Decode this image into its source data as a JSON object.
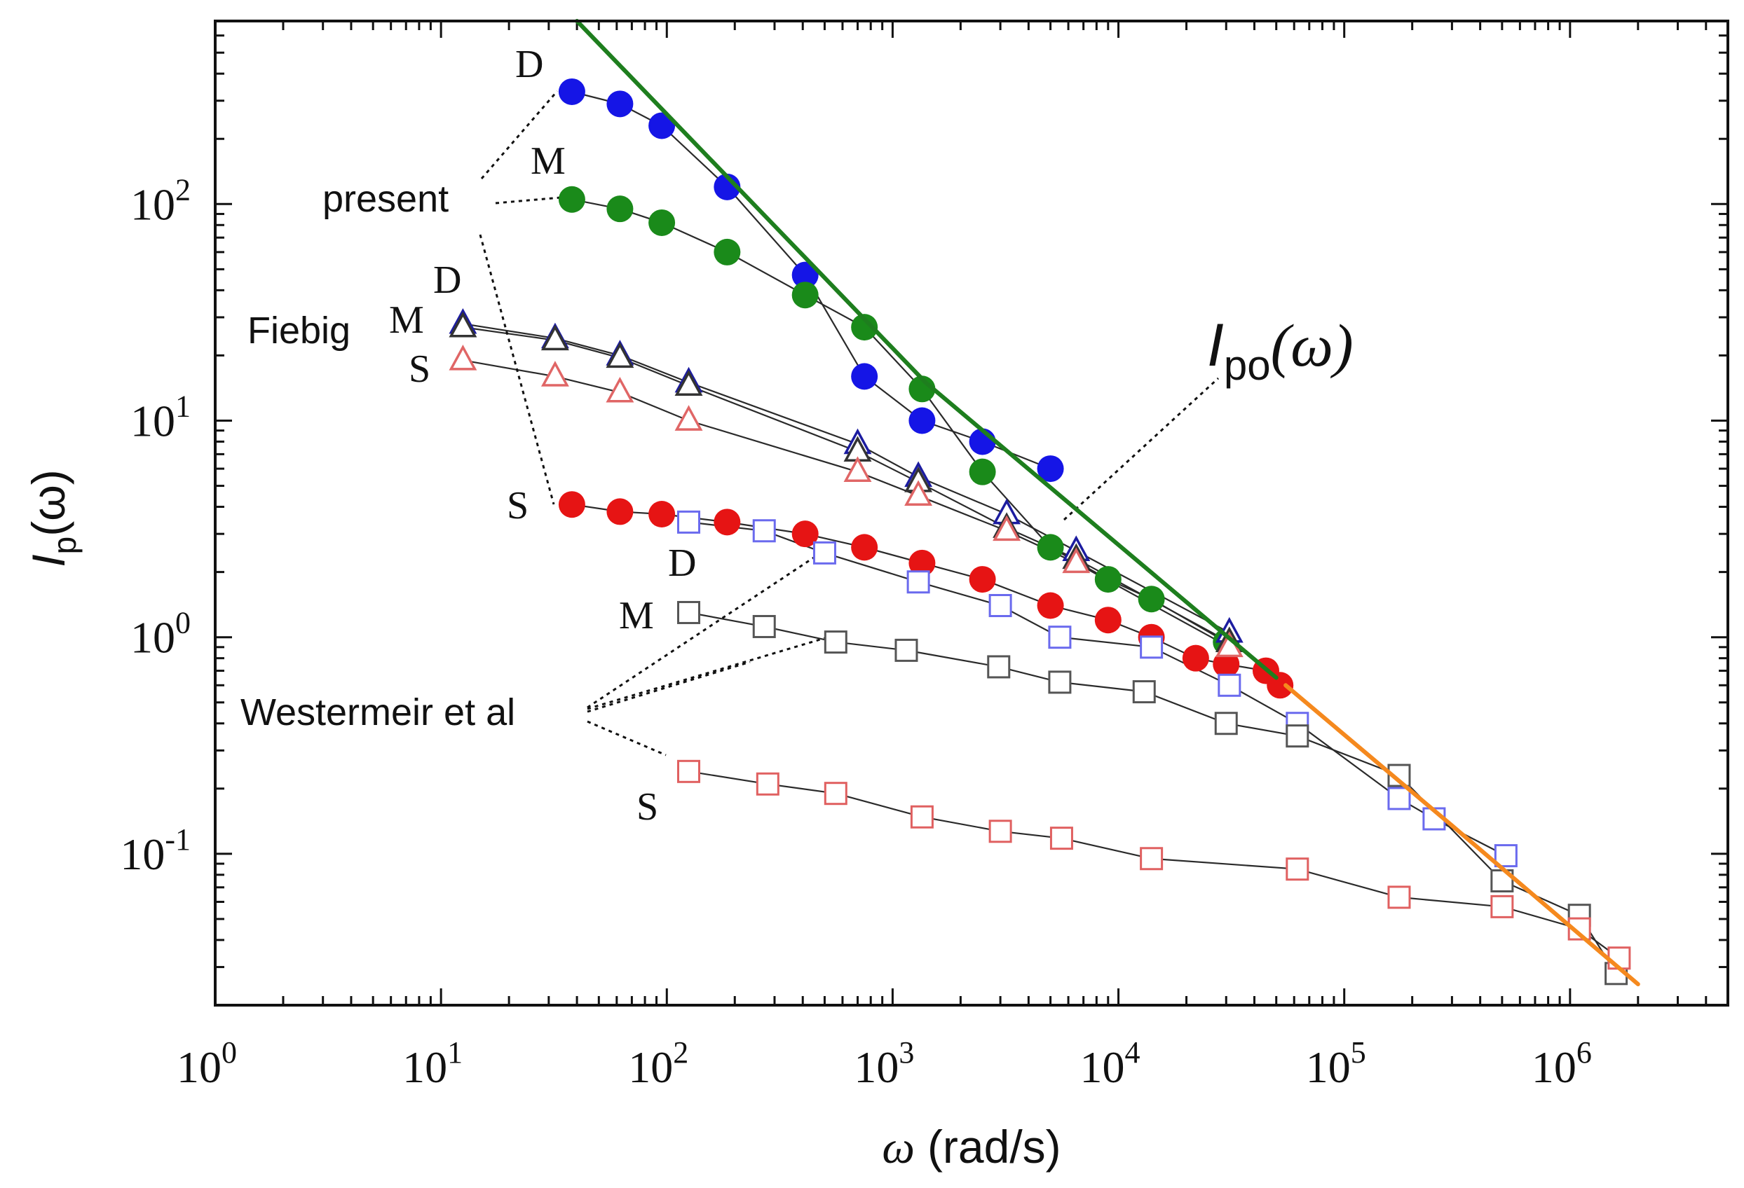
{
  "chart_data": {
    "type": "scatter",
    "xscale": "log",
    "yscale": "log",
    "xlim": [
      1,
      5000000
    ],
    "ylim": [
      0.02,
      700
    ],
    "xlabel_symbol": "ω",
    "xlabel_unit": "(rad/s)",
    "ylabel_main": "I",
    "ylabel_sub": "p",
    "ylabel_arg": "(ω)",
    "x_ticks": [
      {
        "value": 1,
        "base": "10",
        "exp": "0"
      },
      {
        "value": 10,
        "base": "10",
        "exp": "1"
      },
      {
        "value": 100,
        "base": "10",
        "exp": "2"
      },
      {
        "value": 1000,
        "base": "10",
        "exp": "3"
      },
      {
        "value": 10000,
        "base": "10",
        "exp": "4"
      },
      {
        "value": 100000,
        "base": "10",
        "exp": "5"
      },
      {
        "value": 1000000,
        "base": "10",
        "exp": "6"
      }
    ],
    "y_ticks": [
      {
        "value": 0.1,
        "base": "10",
        "exp": "-1"
      },
      {
        "value": 1,
        "base": "10",
        "exp": "0"
      },
      {
        "value": 10,
        "base": "10",
        "exp": "1"
      },
      {
        "value": 100,
        "base": "10",
        "exp": "2"
      }
    ],
    "series": [
      {
        "name": "present D",
        "marker": "circle",
        "color": "#1515e6",
        "filled": true,
        "x": [
          38,
          62,
          95,
          185,
          410,
          750,
          1350,
          2500,
          5000
        ],
        "y": [
          330,
          290,
          230,
          120,
          47,
          16,
          10,
          8,
          6
        ]
      },
      {
        "name": "present M",
        "marker": "circle",
        "color": "#1a8a1a",
        "filled": true,
        "x": [
          38,
          62,
          95,
          185,
          410,
          750,
          1350,
          2500,
          5000,
          9000,
          14000,
          30000
        ],
        "y": [
          105,
          95,
          82,
          60,
          38,
          27,
          14,
          5.8,
          2.6,
          1.85,
          1.5,
          0.95
        ]
      },
      {
        "name": "present S",
        "marker": "circle",
        "color": "#e61414",
        "filled": true,
        "x": [
          38,
          62,
          95,
          185,
          410,
          750,
          1350,
          2500,
          5000,
          9000,
          14000,
          22000,
          30000,
          45000,
          52000
        ],
        "y": [
          4.1,
          3.8,
          3.7,
          3.4,
          3.0,
          2.6,
          2.2,
          1.85,
          1.4,
          1.2,
          1.0,
          0.8,
          0.75,
          0.7,
          0.6
        ]
      },
      {
        "name": "Fiebig D",
        "marker": "triangle",
        "color": "#1c1ca0",
        "filled": false,
        "x": [
          12.5,
          32,
          62,
          125,
          700,
          1300,
          3200,
          6500,
          31000
        ],
        "y": [
          28,
          24,
          20,
          15,
          7.8,
          5.5,
          3.7,
          2.5,
          1.05
        ]
      },
      {
        "name": "Fiebig M",
        "marker": "triangle",
        "color": "#333333",
        "filled": false,
        "x": [
          12.5,
          32,
          62,
          125,
          700,
          1300,
          3200,
          6500,
          31000
        ],
        "y": [
          27,
          23.5,
          19.5,
          14.5,
          7.2,
          5.2,
          3.2,
          2.3,
          0.95
        ]
      },
      {
        "name": "Fiebig S",
        "marker": "triangle",
        "color": "#e06666",
        "filled": false,
        "x": [
          12.5,
          32,
          62,
          125,
          700,
          1300,
          3200,
          6500,
          31000
        ],
        "y": [
          19,
          16,
          13.5,
          10,
          5.8,
          4.5,
          3.1,
          2.2,
          0.9
        ]
      },
      {
        "name": "Westermeir et al D",
        "marker": "square",
        "color": "#6a6aee",
        "filled": false,
        "x": [
          125,
          270,
          500,
          1300,
          3000,
          5500,
          14000,
          31000,
          62000,
          175000,
          250000,
          520000
        ],
        "y": [
          3.4,
          3.1,
          2.45,
          1.8,
          1.4,
          1.0,
          0.9,
          0.6,
          0.4,
          0.18,
          0.145,
          0.098
        ]
      },
      {
        "name": "Westermeir et al M",
        "marker": "square",
        "color": "#555555",
        "filled": false,
        "x": [
          125,
          270,
          560,
          1150,
          2950,
          5500,
          13000,
          30000,
          62000,
          175000,
          500000,
          1100000,
          1600000
        ],
        "y": [
          1.3,
          1.12,
          0.95,
          0.87,
          0.73,
          0.62,
          0.56,
          0.4,
          0.35,
          0.23,
          0.075,
          0.052,
          0.028
        ]
      },
      {
        "name": "Westermeir et al S",
        "marker": "square",
        "color": "#e06060",
        "filled": false,
        "x": [
          125,
          280,
          560,
          1350,
          3000,
          5600,
          14000,
          62000,
          175000,
          500000,
          1100000,
          1650000
        ],
        "y": [
          0.24,
          0.21,
          0.19,
          0.148,
          0.127,
          0.118,
          0.095,
          0.085,
          0.063,
          0.057,
          0.045,
          0.033
        ]
      },
      {
        "name": "green fit",
        "marker": "line",
        "color": "#1e7e1e",
        "filled": false,
        "x": [
          40,
          1400,
          50000
        ],
        "y": [
          700,
          15,
          0.65
        ]
      },
      {
        "name": "orange fit",
        "marker": "line",
        "color": "#f5891e",
        "filled": false,
        "x": [
          55000,
          300000,
          2000000
        ],
        "y": [
          0.6,
          0.135,
          0.025
        ]
      }
    ],
    "annotations": {
      "present": "present",
      "fiebig": "Fiebig",
      "westermeir": "Westermeir et al",
      "ipo_main": "I",
      "ipo_sub": "po",
      "ipo_arg": "(ω)",
      "letters": {
        "D": "D",
        "M": "M",
        "S": "S"
      }
    }
  }
}
